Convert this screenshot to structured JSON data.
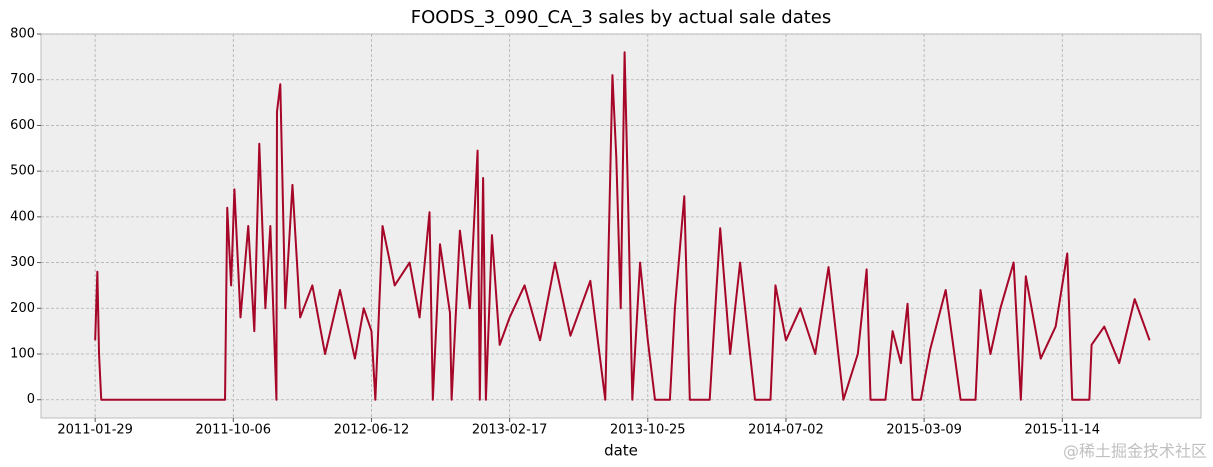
{
  "chart_data": {
    "type": "line",
    "title": "FOODS_3_090_CA_3 sales by actual sale dates",
    "xlabel": "date",
    "watermark": "@稀土掘金技术社区",
    "color": "#A60628",
    "grid": true,
    "xlim": [
      "2010-10-23",
      "2016-07-22"
    ],
    "ylim": [
      -40,
      800
    ],
    "xticks": [
      "2011-01-29",
      "2011-10-06",
      "2012-06-12",
      "2013-02-17",
      "2013-10-25",
      "2014-07-02",
      "2015-03-09",
      "2015-11-14"
    ],
    "yticks": [
      0,
      100,
      200,
      300,
      400,
      500,
      600,
      700,
      800
    ],
    "x": [
      "2011-01-29",
      "2011-02-02",
      "2011-02-05",
      "2011-02-09",
      "2011-09-21",
      "2011-09-25",
      "2011-10-02",
      "2011-10-08",
      "2011-10-19",
      "2011-11-02",
      "2011-11-13",
      "2011-11-22",
      "2011-12-03",
      "2011-12-12",
      "2011-12-23",
      "2011-12-24",
      "2011-12-30",
      "2012-01-08",
      "2012-01-21",
      "2012-02-04",
      "2012-02-26",
      "2012-03-20",
      "2012-04-16",
      "2012-05-13",
      "2012-05-29",
      "2012-06-12",
      "2012-06-19",
      "2012-07-02",
      "2012-07-24",
      "2012-08-20",
      "2012-09-07",
      "2012-09-25",
      "2012-10-01",
      "2012-10-14",
      "2012-11-01",
      "2012-11-04",
      "2012-11-19",
      "2012-12-07",
      "2012-12-21",
      "2012-12-25",
      "2012-12-31",
      "2013-01-05",
      "2013-01-16",
      "2013-01-30",
      "2013-02-17",
      "2013-03-16",
      "2013-04-13",
      "2013-05-10",
      "2013-06-07",
      "2013-07-13",
      "2013-08-09",
      "2013-08-22",
      "2013-08-29",
      "2013-09-06",
      "2013-09-13",
      "2013-09-20",
      "2013-09-27",
      "2013-10-11",
      "2013-10-25",
      "2013-11-07",
      "2013-12-04",
      "2013-12-13",
      "2013-12-30",
      "2014-01-09",
      "2014-02-14",
      "2014-03-05",
      "2014-03-23",
      "2014-04-10",
      "2014-05-07",
      "2014-06-04",
      "2014-06-13",
      "2014-07-02",
      "2014-07-28",
      "2014-08-24",
      "2014-09-17",
      "2014-10-14",
      "2014-11-09",
      "2014-11-25",
      "2014-12-02",
      "2014-12-29",
      "2015-01-11",
      "2015-01-26",
      "2015-02-07",
      "2015-02-16",
      "2015-03-03",
      "2015-03-20",
      "2015-04-17",
      "2015-05-14",
      "2015-06-10",
      "2015-06-19",
      "2015-07-07",
      "2015-07-25",
      "2015-08-18",
      "2015-08-31",
      "2015-09-09",
      "2015-10-06",
      "2015-11-02",
      "2015-11-23",
      "2015-12-02",
      "2016-01-02",
      "2016-01-06",
      "2016-01-29",
      "2016-02-25",
      "2016-03-24",
      "2016-04-20"
    ],
    "values": [
      130,
      280,
      100,
      0,
      0,
      420,
      250,
      460,
      180,
      380,
      150,
      560,
      200,
      380,
      0,
      630,
      690,
      200,
      470,
      180,
      250,
      100,
      240,
      90,
      200,
      150,
      0,
      380,
      250,
      300,
      180,
      410,
      0,
      340,
      190,
      0,
      370,
      200,
      545,
      0,
      485,
      0,
      360,
      120,
      180,
      250,
      130,
      300,
      140,
      260,
      0,
      710,
      530,
      200,
      760,
      400,
      0,
      300,
      130,
      0,
      0,
      200,
      445,
      0,
      0,
      375,
      100,
      300,
      0,
      0,
      250,
      130,
      200,
      100,
      290,
      0,
      100,
      285,
      0,
      0,
      150,
      80,
      210,
      0,
      0,
      110,
      240,
      0,
      0,
      240,
      100,
      200,
      300,
      0,
      270,
      90,
      160,
      320,
      0,
      0,
      120,
      160,
      80,
      220,
      130
    ]
  }
}
